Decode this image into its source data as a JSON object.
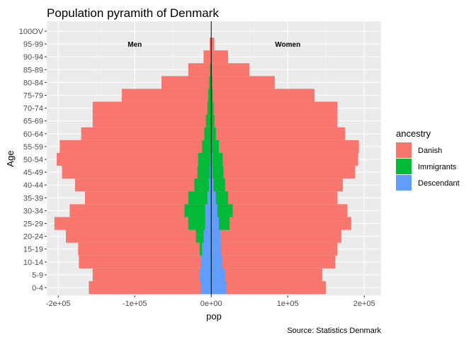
{
  "chart_data": {
    "type": "bar",
    "orientation": "horizontal",
    "stacked": true,
    "title": "Population pyramith of Denmark",
    "xlabel": "pop",
    "ylabel": "Age",
    "caption": "Source: Statistics Denmark",
    "xlim": [
      -215000,
      222000
    ],
    "x_ticks": [
      {
        "value": -200000,
        "label": "-2e+05"
      },
      {
        "value": -100000,
        "label": "-1e+05"
      },
      {
        "value": 0,
        "label": "0e+00"
      },
      {
        "value": 100000,
        "label": "1e+05"
      },
      {
        "value": 200000,
        "label": "2e+05"
      }
    ],
    "grid": true,
    "background": "#ebebeb",
    "legend": {
      "title": "ancestry",
      "position": "right"
    },
    "annotations": [
      {
        "text": "Men",
        "x": -100000,
        "category": "95-99"
      },
      {
        "text": "Women",
        "x": 100000,
        "category": "95-99"
      }
    ],
    "categories": [
      "0-4",
      "5-9",
      "10-14",
      "15-19",
      "20-24",
      "25-29",
      "30-34",
      "35-39",
      "40-44",
      "45-49",
      "50-54",
      "55-59",
      "60-64",
      "65-69",
      "70-74",
      "75-79",
      "80-84",
      "85-89",
      "90-94",
      "95-99",
      "100OV"
    ],
    "series": [
      {
        "name": "Danish",
        "color": "#f8766d",
        "men": [
          -160000,
          -155000,
          -173000,
          -174000,
          -190000,
          -205000,
          -185000,
          -165000,
          -178000,
          -195000,
          -202000,
          -198000,
          -170000,
          -155000,
          -155000,
          -117000,
          -65000,
          -30000,
          -10000,
          -2000,
          0
        ],
        "women": [
          150000,
          145000,
          162000,
          165000,
          170000,
          183000,
          178000,
          165000,
          172000,
          188000,
          192000,
          193000,
          175000,
          165000,
          165000,
          135000,
          83000,
          50000,
          22000,
          4000,
          0
        ]
      },
      {
        "name": "Immigrants",
        "color": "#00ba38",
        "men": [
          -8000,
          -10000,
          -12000,
          -15000,
          -20000,
          -30000,
          -35000,
          -30000,
          -22000,
          -18000,
          -17000,
          -12000,
          -9000,
          -7000,
          -5000,
          -4000,
          -2500,
          -1500,
          -400,
          -100,
          0
        ],
        "women": [
          3000,
          4000,
          6000,
          8000,
          11000,
          24000,
          28000,
          22000,
          18000,
          16000,
          15000,
          10000,
          6000,
          4000,
          3000,
          2000,
          1200,
          700,
          200,
          50,
          0
        ]
      },
      {
        "name": "Descendant",
        "color": "#619cff",
        "men": [
          -14000,
          -15000,
          -14000,
          -12000,
          -10000,
          -8000,
          -8000,
          -5000,
          -3000,
          -1800,
          -1400,
          -800,
          -500,
          -250,
          -100,
          -50,
          -20,
          0,
          0,
          0,
          0
        ],
        "women": [
          20000,
          18000,
          14000,
          13000,
          12000,
          10000,
          8000,
          6000,
          3000,
          1800,
          1400,
          800,
          500,
          250,
          100,
          50,
          20,
          0,
          0,
          0,
          0
        ]
      }
    ]
  }
}
